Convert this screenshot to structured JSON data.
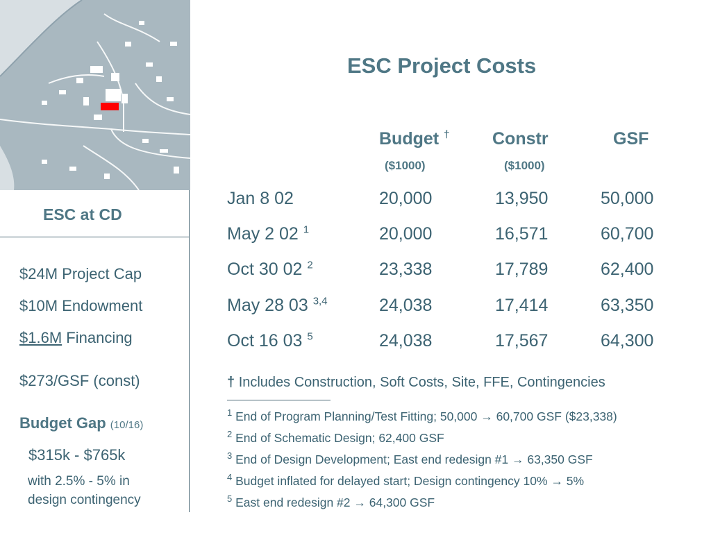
{
  "map": {
    "colors": {
      "background": "#a9b8c0",
      "river": "#d8dfe3",
      "road": "#ffffff",
      "building": "#ffffff",
      "site": "#ff0000"
    }
  },
  "sidebar": {
    "heading": "ESC at CD",
    "cap": "$24M Project Cap",
    "endowment": "$10M Endowment",
    "financing_amount": "$1.6M",
    "financing_label": "Financing",
    "cost_per_gsf": "$273/GSF (const)",
    "budget_gap_label": "Budget Gap",
    "budget_gap_date": "(10/16)",
    "gap_range": "$315k - $765k",
    "gap_note_line1": "with 2.5% - 5% in",
    "gap_note_line2": "design contingency"
  },
  "main": {
    "title": "ESC Project Costs",
    "columns": {
      "budget": "Budget",
      "budget_mark": "†",
      "budget_unit": "($1000)",
      "constr": "Constr",
      "constr_unit": "($1000)",
      "gsf": "GSF"
    },
    "rows": [
      {
        "date": "Jan 8 02",
        "note": "",
        "budget": "20,000",
        "constr": "13,950",
        "gsf": "50,000"
      },
      {
        "date": "May 2 02",
        "note": "1",
        "budget": "20,000",
        "constr": "16,571",
        "gsf": "60,700"
      },
      {
        "date": "Oct 30 02",
        "note": "2",
        "budget": "23,338",
        "constr": "17,789",
        "gsf": "62,400"
      },
      {
        "date": "May 28 03",
        "note": "3,4",
        "budget": "24,038",
        "constr": "17,414",
        "gsf": "63,350"
      },
      {
        "date": "Oct 16 03",
        "note": "5",
        "budget": "24,038",
        "constr": "17,567",
        "gsf": "64,300"
      }
    ],
    "dagger_mark": "†",
    "dagger_note": "Includes Construction, Soft Costs, Site, FFE, Contingencies",
    "footnotes": [
      {
        "num": "1",
        "text": "End of Program Planning/Test Fitting; 50,000 → 60,700 GSF ($23,338)"
      },
      {
        "num": "2",
        "text": "End of Schematic Design; 62,400 GSF"
      },
      {
        "num": "3",
        "text": "End of Design Development; East end redesign #1 → 63,350 GSF"
      },
      {
        "num": "4",
        "text": "Budget inflated for delayed start; Design contingency 10% → 5%"
      },
      {
        "num": "5",
        "text": "East end redesign #2 → 64,300 GSF"
      }
    ]
  }
}
